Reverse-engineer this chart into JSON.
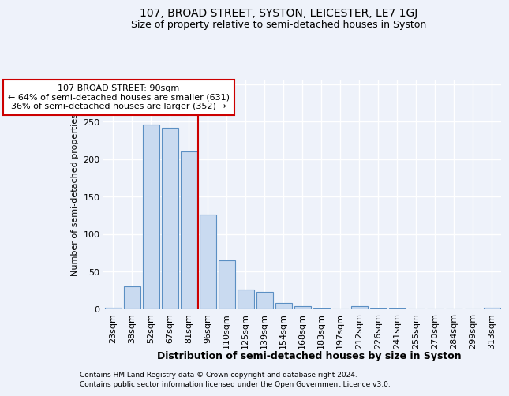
{
  "title": "107, BROAD STREET, SYSTON, LEICESTER, LE7 1GJ",
  "subtitle": "Size of property relative to semi-detached houses in Syston",
  "xlabel": "Distribution of semi-detached houses by size in Syston",
  "ylabel": "Number of semi-detached properties",
  "footnote1": "Contains HM Land Registry data © Crown copyright and database right 2024.",
  "footnote2": "Contains public sector information licensed under the Open Government Licence v3.0.",
  "bar_labels": [
    "23sqm",
    "38sqm",
    "52sqm",
    "67sqm",
    "81sqm",
    "96sqm",
    "110sqm",
    "125sqm",
    "139sqm",
    "154sqm",
    "168sqm",
    "183sqm",
    "197sqm",
    "212sqm",
    "226sqm",
    "241sqm",
    "255sqm",
    "270sqm",
    "284sqm",
    "299sqm",
    "313sqm"
  ],
  "bar_values": [
    2,
    31,
    246,
    242,
    210,
    126,
    65,
    26,
    23,
    8,
    4,
    1,
    0,
    4,
    1,
    1,
    0,
    0,
    0,
    0,
    2
  ],
  "bar_color": "#c9daf0",
  "bar_edge_color": "#5b8fc3",
  "vline_color": "#cc0000",
  "vline_x": 5.0,
  "ylim": [
    0,
    305
  ],
  "yticks": [
    0,
    50,
    100,
    150,
    200,
    250,
    300
  ],
  "annotation_title": "107 BROAD STREET: 90sqm",
  "annotation_line1": "← 64% of semi-detached houses are smaller (631)",
  "annotation_line2": "36% of semi-detached houses are larger (352) →",
  "annotation_box_color": "#ffffff",
  "annotation_box_edge": "#cc0000",
  "background_color": "#eef2fa",
  "grid_color": "#ffffff",
  "title_fontsize": 10,
  "subtitle_fontsize": 9,
  "ylabel_fontsize": 8,
  "xlabel_fontsize": 9,
  "tick_fontsize": 8,
  "annotation_fontsize": 8,
  "footnote_fontsize": 6.5
}
